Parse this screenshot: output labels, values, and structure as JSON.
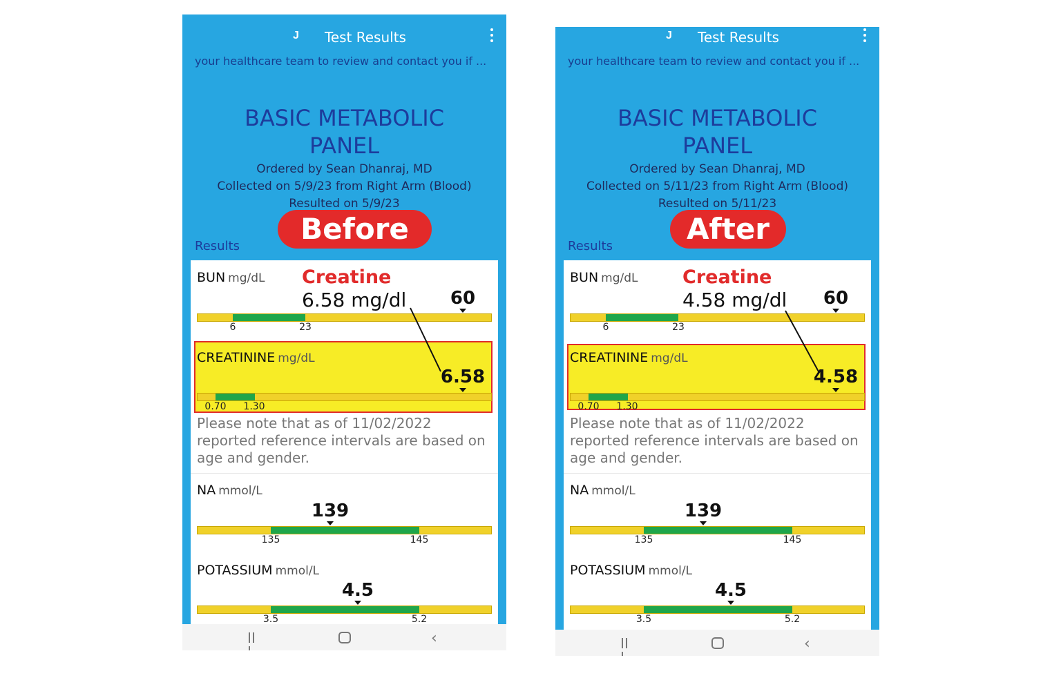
{
  "screens": [
    {
      "id": "before",
      "avatar": "J",
      "title": "Test Results",
      "message": "your healthcare team to review and contact you if ...",
      "panel_title_1": "BASIC METABOLIC",
      "panel_title_2": "PANEL",
      "ordered_by": "Ordered by Sean Dhanraj, MD",
      "collected": "Collected on 5/9/23 from Right Arm (Blood)",
      "resulted": "Resulted on 5/9/23",
      "results_label": "Results",
      "badge": "Before",
      "annotation_title": "Creatine",
      "annotation_value": "6.58 mg/dl",
      "bun": {
        "name": "BUN",
        "unit": "mg/dL",
        "value": "60",
        "low": "6",
        "high": "23"
      },
      "creatinine": {
        "name": "CREATININE",
        "unit": "mg/dL",
        "value": "6.58",
        "low": "0.70",
        "high": "1.30"
      },
      "note": "Please note that as of 11/02/2022 reported reference intervals are based on age and gender.",
      "na": {
        "name": "NA",
        "unit": "mmol/L",
        "value": "139",
        "low": "135",
        "high": "145"
      },
      "potassium": {
        "name": "POTASSIUM",
        "unit": "mmol/L",
        "value": "4.5",
        "low": "3.5",
        "high": "5.2"
      }
    },
    {
      "id": "after",
      "avatar": "J",
      "title": "Test Results",
      "message": "your healthcare team to review and contact you if ...",
      "panel_title_1": "BASIC METABOLIC",
      "panel_title_2": "PANEL",
      "ordered_by": "Ordered by Sean Dhanraj, MD",
      "collected": "Collected on 5/11/23 from Right Arm (Blood)",
      "resulted": "Resulted on 5/11/23",
      "results_label": "Results",
      "badge": "After",
      "annotation_title": "Creatine",
      "annotation_value": "4.58 mg/dl",
      "bun": {
        "name": "BUN",
        "unit": "mg/dL",
        "value": "60",
        "low": "6",
        "high": "23"
      },
      "creatinine": {
        "name": "CREATININE",
        "unit": "mg/dL",
        "value": "4.58",
        "low": "0.70",
        "high": "1.30"
      },
      "note": "Please note that as of 11/02/2022 reported reference intervals are based on age and gender.",
      "na": {
        "name": "NA",
        "unit": "mmol/L",
        "value": "139",
        "low": "135",
        "high": "145"
      },
      "potassium": {
        "name": "POTASSIUM",
        "unit": "mmol/L",
        "value": "4.5",
        "low": "3.5",
        "high": "5.2"
      }
    }
  ],
  "colors": {
    "header_blue": "#27a6e1",
    "badge_red": "#e32a2a",
    "highlight_yellow": "#f7ec26",
    "range_green": "#1fa64a",
    "range_yellow": "#f0d12a"
  }
}
